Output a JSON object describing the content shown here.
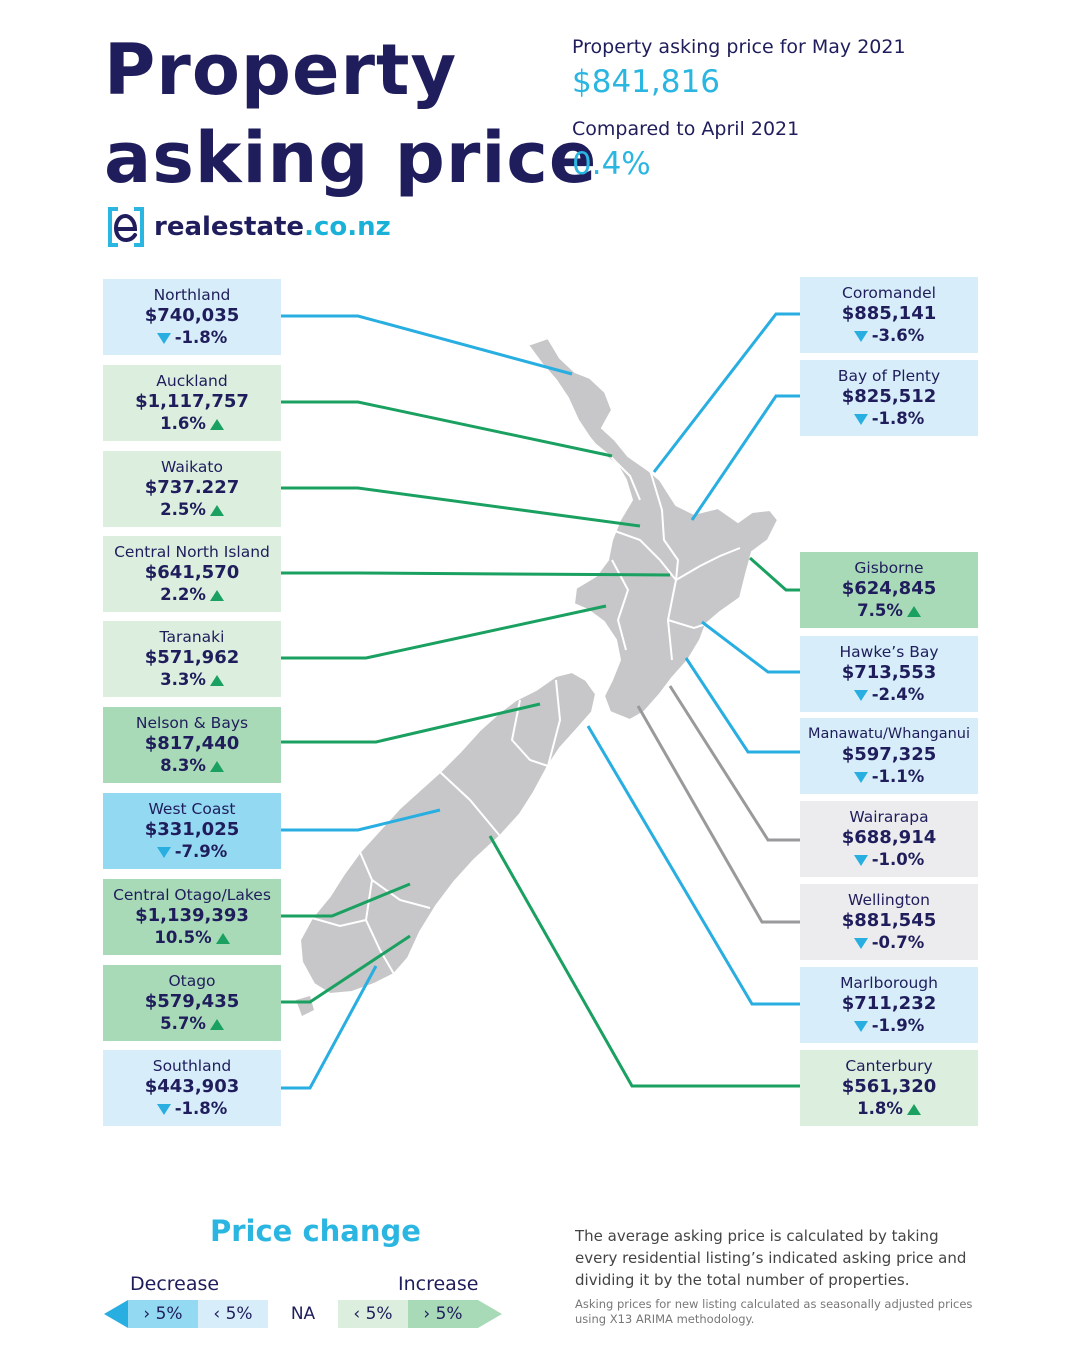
{
  "header": {
    "title_line1": "Property",
    "title_line2": "asking price",
    "logo_text_a": "realestate",
    "logo_text_b": ".co.nz",
    "logo_icon": "realestate-logo-icon"
  },
  "summary": {
    "current_label": "Property asking price for May 2021",
    "current_value": "$841,816",
    "compare_label": "Compared to April 2021",
    "compare_value": "0.4%"
  },
  "colors": {
    "navy": "#1f1d5b",
    "cyan": "#2ab6e0",
    "decrease_light": "#d7eefa",
    "decrease_strong": "#94d9f2",
    "increase_light": "#dcefdf",
    "increase_strong": "#a9dab8",
    "na": "#ececee"
  },
  "regions_left": [
    {
      "name": "Northland",
      "price": "$740,035",
      "change": "-1.8%",
      "direction": "down",
      "band": "light-decrease"
    },
    {
      "name": "Auckland",
      "price": "$1,117,757",
      "change": "1.6%",
      "direction": "up",
      "band": "light-increase"
    },
    {
      "name": "Waikato",
      "price": "$737.227",
      "change": "2.5%",
      "direction": "up",
      "band": "light-increase"
    },
    {
      "name": "Central North Island",
      "price": "$641,570",
      "change": "2.2%",
      "direction": "up",
      "band": "light-increase"
    },
    {
      "name": "Taranaki",
      "price": "$571,962",
      "change": "3.3%",
      "direction": "up",
      "band": "light-increase"
    },
    {
      "name": "Nelson & Bays",
      "price": "$817,440",
      "change": "8.3%",
      "direction": "up",
      "band": "strong-increase"
    },
    {
      "name": "West Coast",
      "price": "$331,025",
      "change": "-7.9%",
      "direction": "down",
      "band": "strong-decrease"
    },
    {
      "name": "Central Otago/Lakes",
      "price": "$1,139,393",
      "change": "10.5%",
      "direction": "up",
      "band": "strong-increase"
    },
    {
      "name": "Otago",
      "price": "$579,435",
      "change": "5.7%",
      "direction": "up",
      "band": "strong-increase"
    },
    {
      "name": "Southland",
      "price": "$443,903",
      "change": "-1.8%",
      "direction": "down",
      "band": "light-decrease"
    }
  ],
  "regions_right": [
    {
      "name": "Coromandel",
      "price": "$885,141",
      "change": "-3.6%",
      "direction": "down",
      "band": "light-decrease"
    },
    {
      "name": "Bay of Plenty",
      "price": "$825,512",
      "change": "-1.8%",
      "direction": "down",
      "band": "light-decrease"
    },
    {
      "name": "Gisborne",
      "price": "$624,845",
      "change": "7.5%",
      "direction": "up",
      "band": "strong-increase"
    },
    {
      "name": "Hawke’s Bay",
      "price": "$713,553",
      "change": "-2.4%",
      "direction": "down",
      "band": "light-decrease"
    },
    {
      "name": "Manawatu/Whanganui",
      "price": "$597,325",
      "change": "-1.1%",
      "direction": "down",
      "band": "light-decrease"
    },
    {
      "name": "Wairarapa",
      "price": "$688,914",
      "change": "-1.0%",
      "direction": "down",
      "band": "na"
    },
    {
      "name": "Wellington",
      "price": "$881,545",
      "change": "-0.7%",
      "direction": "down",
      "band": "na"
    },
    {
      "name": "Marlborough",
      "price": "$711,232",
      "change": "-1.9%",
      "direction": "down",
      "band": "light-decrease"
    },
    {
      "name": "Canterbury",
      "price": "$561,320",
      "change": "1.8%",
      "direction": "up",
      "band": "light-increase"
    }
  ],
  "legend": {
    "title": "Price change",
    "decrease_label": "Decrease",
    "increase_label": "Increase",
    "cells": [
      "› 5%",
      "‹ 5%",
      "NA",
      "‹ 5%",
      "› 5%"
    ]
  },
  "notes": {
    "main": "The average asking price is calculated by taking every residential listing’s indicated asking price and dividing it by the total number of properties.",
    "footnote": "Asking prices for new listing calculated as seasonally adjusted prices using X13 ARIMA methodology."
  }
}
